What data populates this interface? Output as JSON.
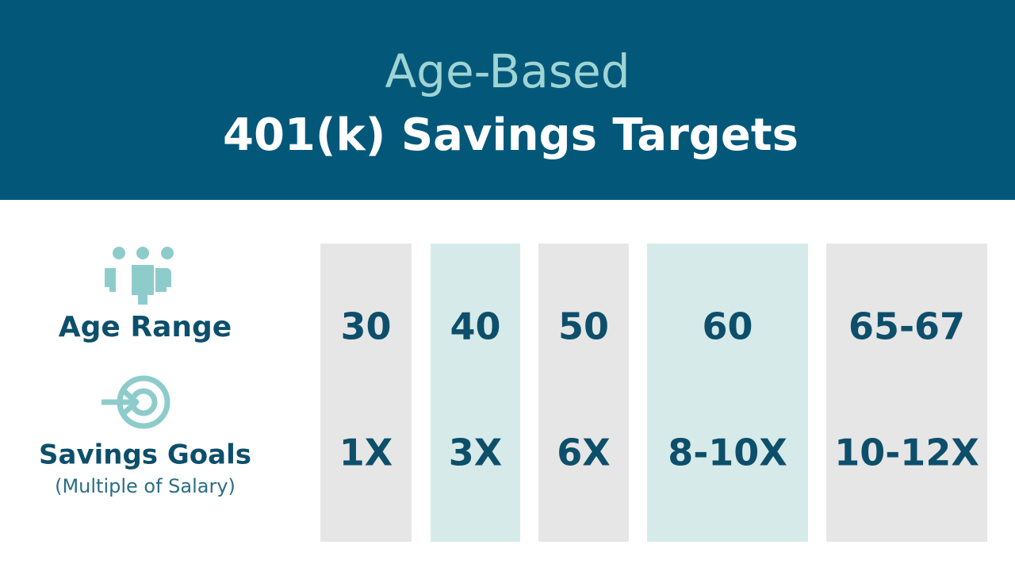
{
  "header": {
    "title_line1": "Age-Based",
    "title_line2": "401(k) Savings Targets"
  },
  "labels": {
    "age_range": "Age Range",
    "savings_goals": "Savings Goals",
    "savings_goals_note": "(Multiple of Salary)"
  },
  "columns": [
    {
      "age": "30",
      "goal": "1X"
    },
    {
      "age": "40",
      "goal": "3X"
    },
    {
      "age": "50",
      "goal": "6X"
    },
    {
      "age": "60",
      "goal": "8-10X"
    },
    {
      "age": "65-67",
      "goal": "10-12X"
    }
  ]
}
